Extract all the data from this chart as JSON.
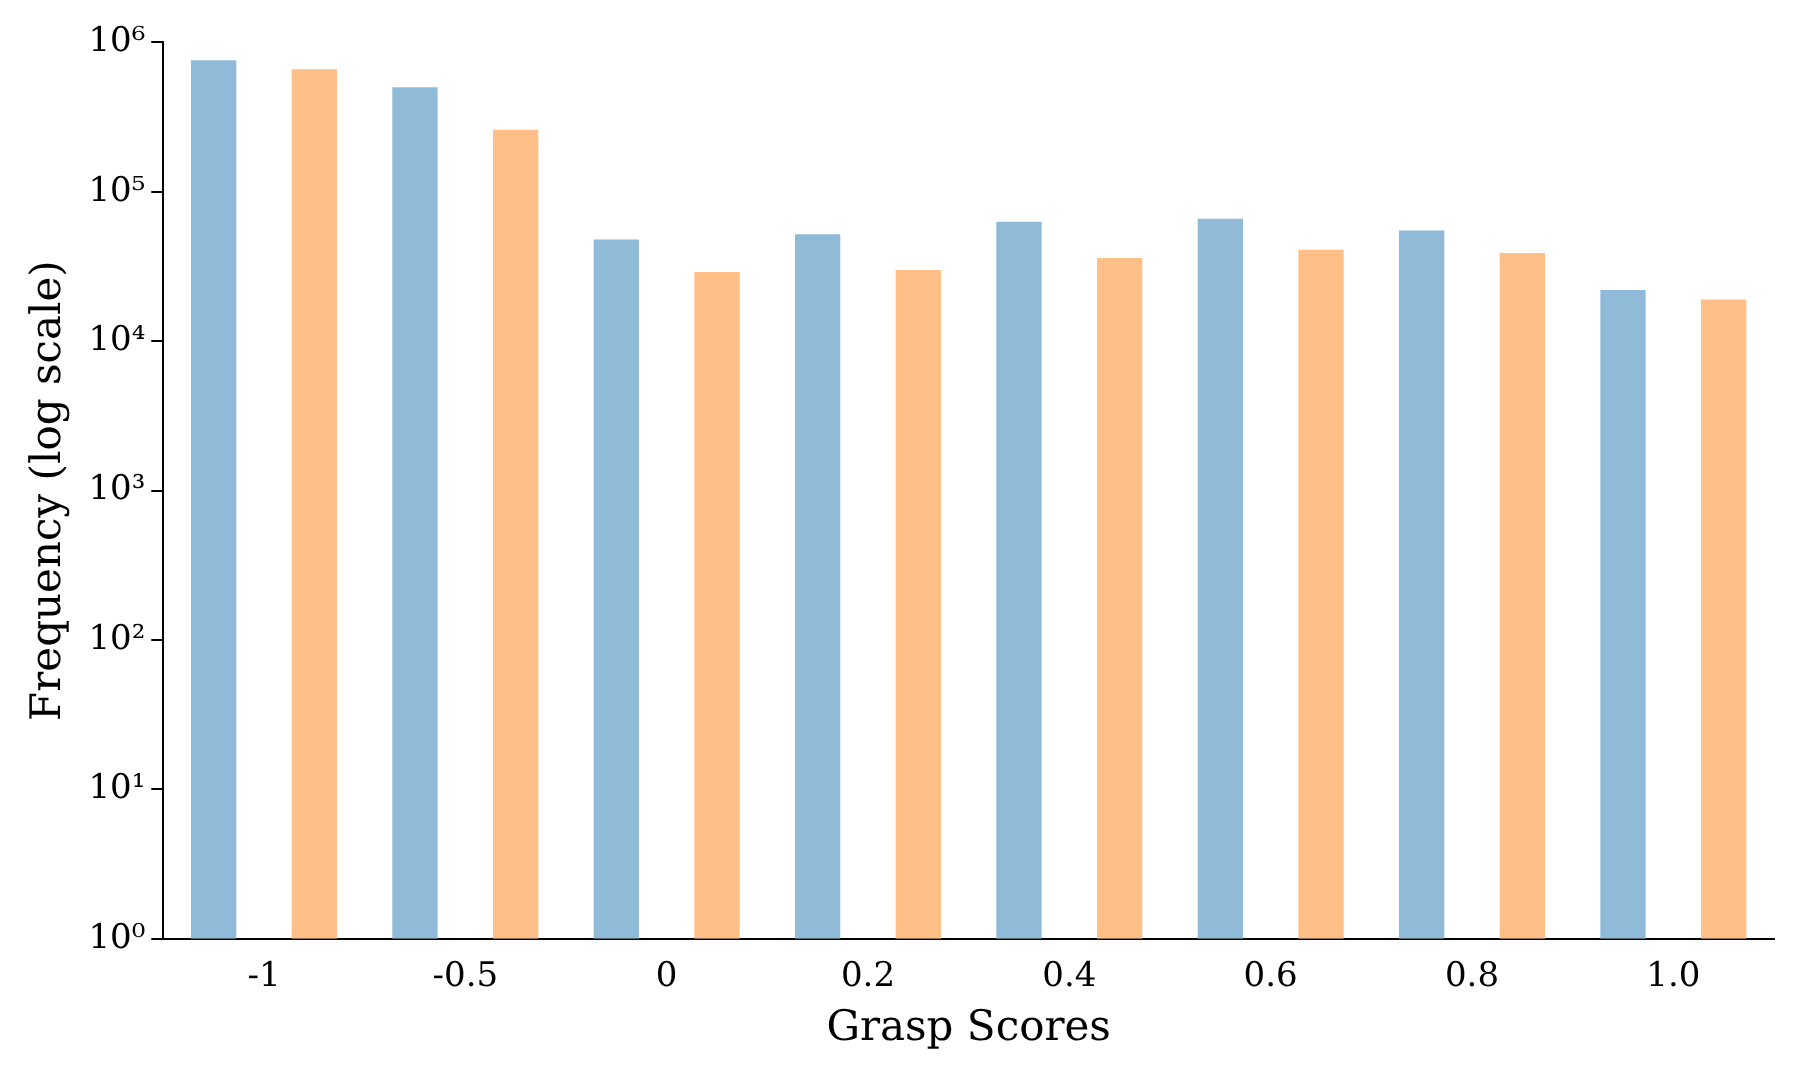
{
  "chart_data": {
    "type": "bar",
    "xlabel": "Grasp Scores",
    "ylabel": "Frequency (log scale)",
    "categories": [
      "-1",
      "-0.5",
      "0",
      "0.2",
      "0.4",
      "0.6",
      "0.8",
      "1.0"
    ],
    "series": [
      {
        "color": "#8fbbd9",
        "values": [
          760000,
          500000,
          48000,
          52000,
          63000,
          66000,
          55000,
          22000
        ]
      },
      {
        "color": "#ffbf86",
        "values": [
          660000,
          260000,
          29000,
          30000,
          36000,
          41000,
          39000,
          19000
        ]
      }
    ],
    "log": "y",
    "ylim": [
      1,
      1000000
    ],
    "yticks": [
      {
        "value": 1,
        "label": "10⁰"
      },
      {
        "value": 10,
        "label": "10¹"
      },
      {
        "value": 100,
        "label": "10²"
      },
      {
        "value": 1000,
        "label": "10³"
      },
      {
        "value": 10000,
        "label": "10⁴"
      },
      {
        "value": 100000,
        "label": "10⁵"
      },
      {
        "value": 1000000,
        "label": "10⁶"
      }
    ],
    "grid": false,
    "legend": false
  }
}
